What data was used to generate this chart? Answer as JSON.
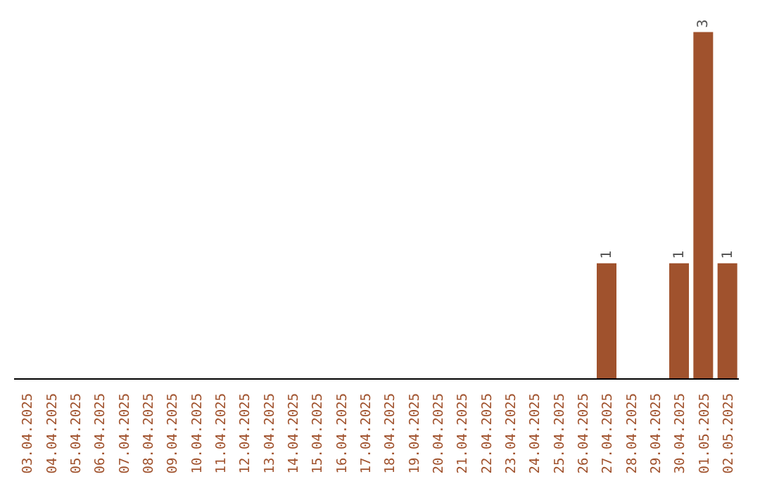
{
  "chart_data": {
    "type": "bar",
    "categories": [
      "03.04.2025",
      "04.04.2025",
      "05.04.2025",
      "06.04.2025",
      "07.04.2025",
      "08.04.2025",
      "09.04.2025",
      "10.04.2025",
      "11.04.2025",
      "12.04.2025",
      "13.04.2025",
      "14.04.2025",
      "15.04.2025",
      "16.04.2025",
      "17.04.2025",
      "18.04.2025",
      "19.04.2025",
      "20.04.2025",
      "21.04.2025",
      "22.04.2025",
      "23.04.2025",
      "24.04.2025",
      "25.04.2025",
      "26.04.2025",
      "27.04.2025",
      "28.04.2025",
      "29.04.2025",
      "30.04.2025",
      "01.05.2025",
      "02.05.2025"
    ],
    "values": [
      null,
      null,
      null,
      null,
      null,
      null,
      null,
      null,
      null,
      null,
      null,
      null,
      null,
      null,
      null,
      null,
      null,
      null,
      null,
      null,
      null,
      null,
      null,
      null,
      1,
      null,
      null,
      1,
      3,
      1
    ],
    "color": "#a0522d",
    "data_labels": true,
    "tick_labels": "x",
    "grid": false,
    "legend": false
  }
}
